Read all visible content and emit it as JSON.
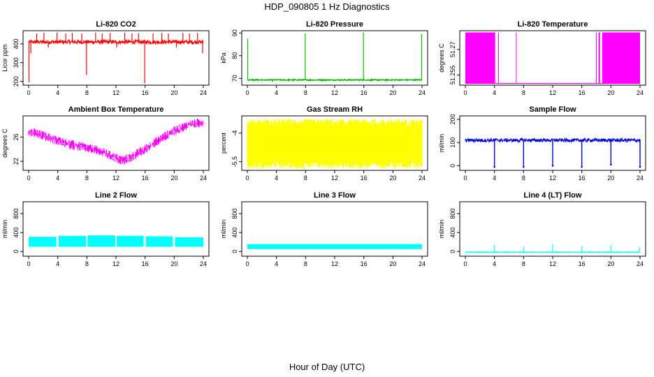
{
  "figure": {
    "title": "HDP_090805  1 Hz Diagnostics",
    "xlabel": "Hour of Day (UTC)"
  },
  "chart_data": [
    {
      "type": "line",
      "title": "Li-820 CO2",
      "ylabel": "Licor ppm",
      "color": "#ff0000",
      "xlim": [
        0,
        24
      ],
      "xticks": [
        0,
        4,
        8,
        12,
        16,
        20,
        24
      ],
      "ylim": [
        180,
        470
      ],
      "yticks": [
        200,
        300,
        400
      ],
      "baseline": 410,
      "noise": 10,
      "spikes": [
        {
          "x": 0.05,
          "y": 195
        },
        {
          "x": 0.3,
          "y": 350
        },
        {
          "x": 1.1,
          "y": 455
        },
        {
          "x": 2.1,
          "y": 460
        },
        {
          "x": 2.7,
          "y": 380
        },
        {
          "x": 3.9,
          "y": 460
        },
        {
          "x": 5.1,
          "y": 455
        },
        {
          "x": 6.0,
          "y": 458
        },
        {
          "x": 7.3,
          "y": 455
        },
        {
          "x": 7.95,
          "y": 235
        },
        {
          "x": 9.2,
          "y": 460
        },
        {
          "x": 10.1,
          "y": 456
        },
        {
          "x": 11.2,
          "y": 458
        },
        {
          "x": 12.1,
          "y": 380
        },
        {
          "x": 13.2,
          "y": 460
        },
        {
          "x": 14.2,
          "y": 455
        },
        {
          "x": 15.1,
          "y": 457
        },
        {
          "x": 15.95,
          "y": 190
        },
        {
          "x": 17.1,
          "y": 455
        },
        {
          "x": 18.3,
          "y": 458
        },
        {
          "x": 19.2,
          "y": 455
        },
        {
          "x": 20.3,
          "y": 380
        },
        {
          "x": 21.2,
          "y": 458
        },
        {
          "x": 22.1,
          "y": 455
        },
        {
          "x": 23.2,
          "y": 458
        },
        {
          "x": 23.9,
          "y": 350
        }
      ]
    },
    {
      "type": "line",
      "title": "Li-820 Pressure",
      "ylabel": "kPa",
      "color": "#00bb00",
      "xlim": [
        0,
        24
      ],
      "xticks": [
        0,
        4,
        8,
        12,
        16,
        20,
        24
      ],
      "ylim": [
        67,
        91
      ],
      "yticks": [
        70,
        80,
        90
      ],
      "baseline": 69.3,
      "noise": 0.3,
      "spikes": [
        {
          "x": 0.05,
          "y": 87.5
        },
        {
          "x": 7.95,
          "y": 89.8
        },
        {
          "x": 15.95,
          "y": 90.2
        },
        {
          "x": 23.95,
          "y": 89.5
        }
      ]
    },
    {
      "type": "area",
      "title": "Li-820 Temperature",
      "ylabel": "degrees C",
      "color": "#ff00ff",
      "xlim": [
        0,
        24
      ],
      "xticks": [
        0,
        4,
        8,
        12,
        16,
        20,
        24
      ],
      "ylim": [
        51.249,
        51.281
      ],
      "yticks": [
        51.255,
        51.27
      ],
      "low": 51.25,
      "high": 51.28,
      "blocks": [
        [
          0,
          4.1
        ],
        [
          4.5,
          4.6
        ],
        [
          18.3,
          18.5
        ],
        [
          18.8,
          24
        ]
      ],
      "singles": [
        7.0,
        18.0
      ]
    },
    {
      "type": "line",
      "title": "Ambient Box Temperature",
      "ylabel": "degrees C",
      "color": "#ff00ff",
      "xlim": [
        0,
        24
      ],
      "xticks": [
        0,
        4,
        8,
        12,
        16,
        20,
        24
      ],
      "ylim": [
        20.5,
        29.5
      ],
      "yticks": [
        22,
        26
      ],
      "x": [
        0,
        2,
        4,
        6,
        8,
        10,
        12,
        13,
        14,
        16,
        18,
        20,
        22,
        24
      ],
      "y": [
        27.0,
        26.2,
        25.4,
        24.7,
        24.2,
        23.6,
        22.5,
        22.2,
        22.6,
        24.0,
        25.6,
        27.0,
        28.0,
        28.5
      ],
      "noise": 1.6
    },
    {
      "type": "area",
      "title": "Gas Stream RH",
      "ylabel": "percent",
      "color": "#ffff00",
      "xlim": [
        0,
        24
      ],
      "xticks": [
        0,
        4,
        8,
        12,
        16,
        20,
        24
      ],
      "ylim": [
        -5.95,
        -3.1
      ],
      "yticks": [
        -5.5,
        -4.0
      ],
      "low": -5.45,
      "high": -3.65,
      "noise": 0.4
    },
    {
      "type": "line",
      "title": "Sample Flow",
      "ylabel": "ml/min",
      "color": "#0000dd",
      "xlim": [
        0,
        24
      ],
      "xticks": [
        0,
        4,
        8,
        12,
        16,
        20,
        24
      ],
      "ylim": [
        -20,
        215
      ],
      "yticks": [
        0,
        100,
        200
      ],
      "baseline": 110,
      "noise": 7,
      "dips": [
        {
          "x": 4.0,
          "y": -5
        },
        {
          "x": 8.0,
          "y": -5
        },
        {
          "x": 12.0,
          "y": 0
        },
        {
          "x": 16.0,
          "y": -5
        },
        {
          "x": 20.0,
          "y": 5
        },
        {
          "x": 24.0,
          "y": -5
        }
      ]
    },
    {
      "type": "area",
      "title": "Line 2 Flow",
      "ylabel": "ml/min",
      "color": "#00ffff",
      "xlim": [
        0,
        24
      ],
      "xticks": [
        0,
        4,
        8,
        12,
        16,
        20,
        24
      ],
      "ylim": [
        -100,
        1050
      ],
      "yticks": [
        0,
        400,
        800
      ],
      "segments": [
        {
          "x0": 0.0,
          "x1": 3.8,
          "low": 100,
          "high": 310
        },
        {
          "x0": 4.1,
          "x1": 7.9,
          "low": 100,
          "high": 330
        },
        {
          "x0": 8.1,
          "x1": 11.9,
          "low": 100,
          "high": 340
        },
        {
          "x0": 12.1,
          "x1": 15.8,
          "low": 100,
          "high": 330
        },
        {
          "x0": 16.1,
          "x1": 19.8,
          "low": 100,
          "high": 320
        },
        {
          "x0": 20.1,
          "x1": 24.0,
          "low": 100,
          "high": 300
        }
      ]
    },
    {
      "type": "area",
      "title": "Line 3 Flow",
      "ylabel": "ml/min",
      "color": "#00ffff",
      "xlim": [
        0,
        24
      ],
      "xticks": [
        0,
        4,
        8,
        12,
        16,
        20,
        24
      ],
      "ylim": [
        -100,
        1050
      ],
      "yticks": [
        0,
        400,
        800
      ],
      "segments": [
        {
          "x0": 0.0,
          "x1": 24.0,
          "low": 50,
          "high": 155
        }
      ]
    },
    {
      "type": "line",
      "title": "Line 4 (LT) Flow",
      "ylabel": "ml/min",
      "color": "#00ffff",
      "xlim": [
        0,
        24
      ],
      "xticks": [
        0,
        4,
        8,
        12,
        16,
        20,
        24
      ],
      "ylim": [
        -100,
        1050
      ],
      "yticks": [
        0,
        400,
        800
      ],
      "baseline": -15,
      "noise": 8,
      "spikes": [
        {
          "x": 4.0,
          "y": 140
        },
        {
          "x": 8.0,
          "y": 100
        },
        {
          "x": 12.0,
          "y": 150
        },
        {
          "x": 16.0,
          "y": 110
        },
        {
          "x": 20.0,
          "y": 140
        },
        {
          "x": 23.95,
          "y": 90
        }
      ]
    }
  ]
}
